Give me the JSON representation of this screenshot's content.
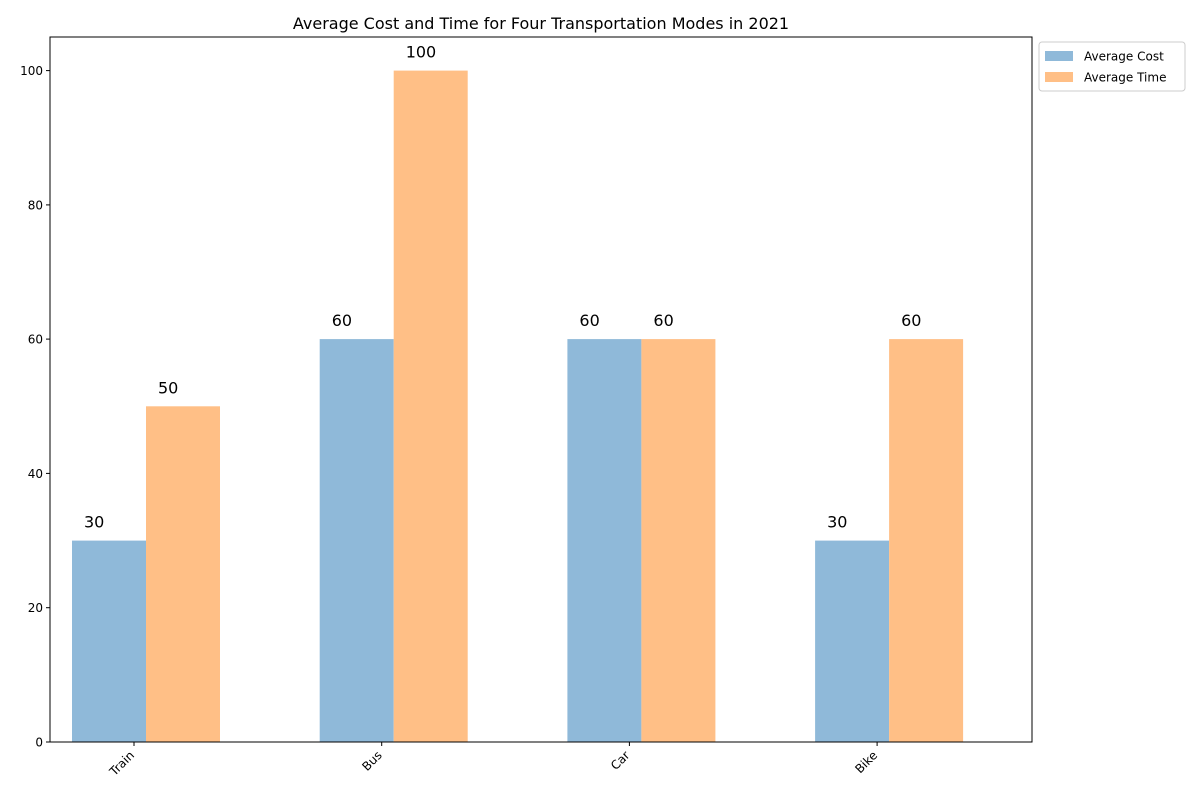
{
  "chart_data": {
    "type": "bar",
    "title": "Average Cost and Time for Four Transportation Modes in 2021",
    "xlabel": "",
    "ylabel": "",
    "categories": [
      "Train",
      "Bus",
      "Car",
      "Bike"
    ],
    "series": [
      {
        "name": "Average Cost",
        "values": [
          30,
          60,
          60,
          30
        ],
        "color": "#8fb9d9",
        "labels": [
          "30",
          "60",
          "60",
          "30"
        ]
      },
      {
        "name": "Average Time",
        "values": [
          50,
          100,
          60,
          60
        ],
        "color": "#ffbf86",
        "labels": [
          "50",
          "100",
          "60",
          "60"
        ]
      }
    ],
    "ylim": [
      0,
      105
    ],
    "yticks": [
      "0",
      "20",
      "40",
      "60",
      "80",
      "100"
    ],
    "legend_position": "top-right, outside axes",
    "grid": false,
    "xtick_rotation": "45 degrees"
  }
}
